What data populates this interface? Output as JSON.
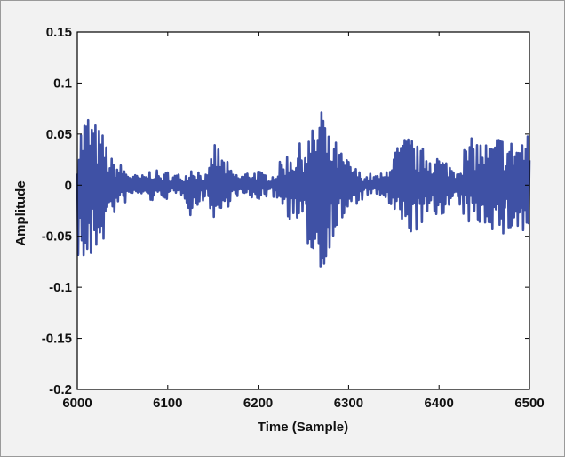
{
  "chart_data": {
    "type": "line",
    "title": "",
    "xlabel": "Time (Sample)",
    "ylabel": "Amplitude",
    "xlim": [
      6000,
      6500
    ],
    "ylim": [
      -0.2,
      0.15
    ],
    "xticks": [
      6000,
      6100,
      6200,
      6300,
      6400,
      6500
    ],
    "xtick_labels": [
      "6000",
      "6100",
      "6200",
      "6300",
      "6400",
      "6500"
    ],
    "yticks": [
      -0.2,
      -0.15,
      -0.1,
      -0.05,
      0,
      0.05,
      0.1,
      0.15
    ],
    "ytick_labels": [
      "-0.2",
      "-0.15",
      "-0.1",
      "-0.05",
      "0",
      "0.05",
      "0.1",
      "0.15"
    ],
    "grid": false,
    "legend": "none",
    "line_color": "#3f51a5",
    "series": [
      {
        "x_start": 6000,
        "x_step": 5,
        "envelope_max": [
          0.045,
          0.065,
          0.075,
          0.072,
          0.062,
          0.055,
          0.05,
          0.03,
          0.025,
          0.022,
          0.02,
          0.015,
          0.012,
          0.01,
          0.01,
          0.01,
          0.015,
          0.018,
          0.012,
          0.01,
          0.015,
          0.01,
          0.012,
          0.01,
          0.012,
          0.02,
          0.02,
          0.015,
          0.012,
          0.01,
          0.045,
          0.04,
          0.03,
          0.025,
          0.015,
          0.012,
          0.01,
          0.012,
          0.015,
          0.015,
          0.015,
          0.012,
          0.012,
          0.01,
          0.015,
          0.025,
          0.03,
          0.035,
          0.035,
          0.04,
          0.045,
          0.05,
          0.055,
          0.065,
          0.095,
          0.055,
          0.045,
          0.045,
          0.035,
          0.03,
          0.025,
          0.02,
          0.015,
          0.012,
          0.01,
          0.012,
          0.01,
          0.012,
          0.01,
          0.03,
          0.035,
          0.04,
          0.045,
          0.05,
          0.048,
          0.04,
          0.035,
          0.04,
          0.035,
          0.035,
          0.03,
          0.025,
          0.025,
          0.02,
          0.02,
          0.035,
          0.04,
          0.045,
          0.05,
          0.045,
          0.045,
          0.04,
          0.045,
          0.05,
          0.05,
          0.045,
          0.045,
          0.048,
          0.05,
          0.05,
          0.05
        ],
        "envelope_min": [
          -0.07,
          -0.083,
          -0.086,
          -0.085,
          -0.07,
          -0.06,
          -0.055,
          -0.035,
          -0.03,
          -0.025,
          -0.022,
          -0.015,
          -0.012,
          -0.01,
          -0.01,
          -0.012,
          -0.015,
          -0.018,
          -0.015,
          -0.012,
          -0.015,
          -0.012,
          -0.012,
          -0.01,
          -0.015,
          -0.03,
          -0.028,
          -0.02,
          -0.015,
          -0.012,
          -0.04,
          -0.035,
          -0.03,
          -0.025,
          -0.015,
          -0.012,
          -0.01,
          -0.012,
          -0.015,
          -0.015,
          -0.015,
          -0.012,
          -0.012,
          -0.01,
          -0.015,
          -0.02,
          -0.025,
          -0.035,
          -0.04,
          -0.045,
          -0.055,
          -0.06,
          -0.07,
          -0.082,
          -0.105,
          -0.07,
          -0.06,
          -0.05,
          -0.04,
          -0.035,
          -0.03,
          -0.025,
          -0.02,
          -0.015,
          -0.01,
          -0.01,
          -0.012,
          -0.012,
          -0.012,
          -0.025,
          -0.03,
          -0.04,
          -0.045,
          -0.05,
          -0.048,
          -0.045,
          -0.04,
          -0.04,
          -0.035,
          -0.035,
          -0.03,
          -0.028,
          -0.025,
          -0.02,
          -0.02,
          -0.03,
          -0.035,
          -0.04,
          -0.045,
          -0.04,
          -0.04,
          -0.04,
          -0.045,
          -0.05,
          -0.055,
          -0.05,
          -0.045,
          -0.048,
          -0.05,
          -0.055,
          -0.055
        ]
      }
    ]
  }
}
